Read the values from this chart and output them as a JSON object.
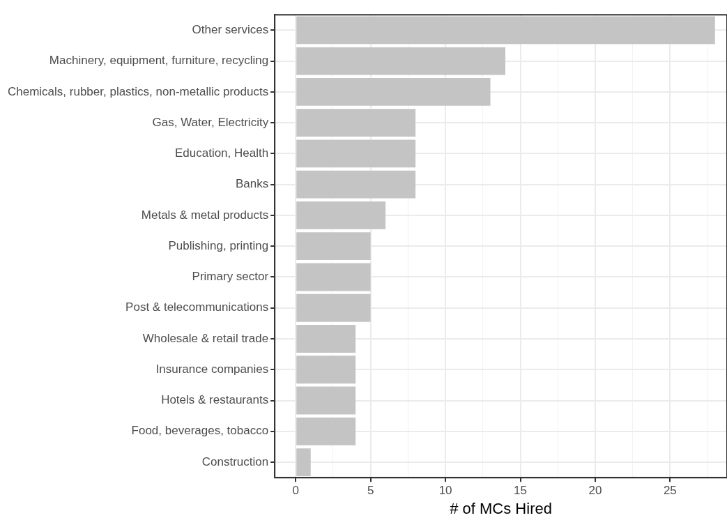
{
  "chart_data": {
    "type": "bar",
    "orientation": "horizontal",
    "xlabel": "# of MCs Hired",
    "categories": [
      "Other services",
      "Machinery, equipment, furniture, recycling",
      "Chemicals, rubber, plastics, non-metallic products",
      "Gas, Water, Electricity",
      "Education, Health",
      "Banks",
      "Metals & metal products",
      "Publishing, printing",
      "Primary sector",
      "Post & telecommunications",
      "Wholesale & retail trade",
      "Insurance companies",
      "Hotels & restaurants",
      "Food, beverages, tobacco",
      "Construction"
    ],
    "values": [
      28,
      14,
      13,
      8,
      8,
      8,
      6,
      5,
      5,
      5,
      4,
      4,
      4,
      4,
      1
    ],
    "color": "#c4c4c4",
    "xlim": [
      -1.4,
      28.8
    ],
    "xticks": [
      0,
      {
        "value": 2.5,
        "label": null
      },
      5,
      {
        "value": 7.5,
        "label": null
      },
      10,
      {
        "value": 12.5,
        "label": null
      },
      15,
      {
        "value": 17.5,
        "label": null
      },
      20,
      {
        "value": 22.5,
        "label": null
      },
      25,
      {
        "value": 27.5,
        "label": null
      }
    ],
    "grid": true,
    "legend": false
  }
}
